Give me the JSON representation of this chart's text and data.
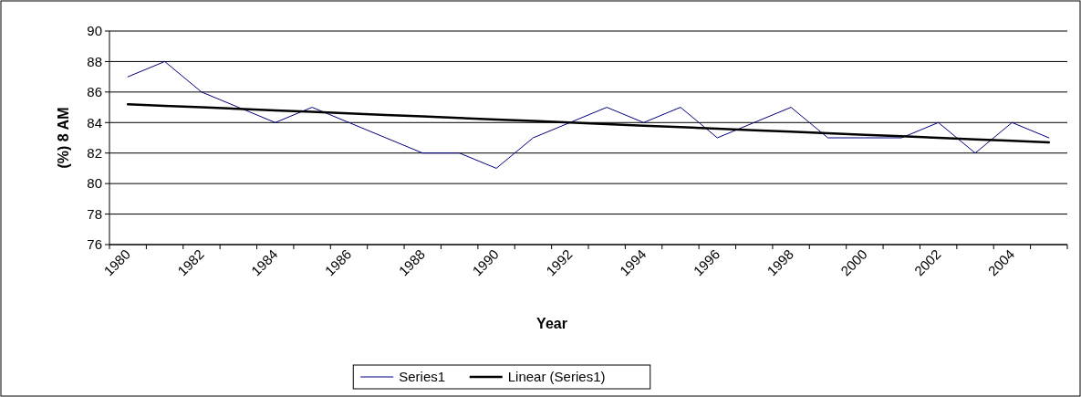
{
  "chart_data": {
    "type": "line",
    "xlabel": "Year",
    "ylabel": "(%) 8 AM",
    "categories": [
      "1980",
      null,
      "1982",
      null,
      "1984",
      null,
      "1986",
      null,
      "1988",
      null,
      "1990",
      null,
      "1992",
      null,
      "1994",
      null,
      "1996",
      null,
      "1998",
      null,
      "2000",
      null,
      "2002",
      null,
      "2004",
      null
    ],
    "series": [
      {
        "name": "Series1",
        "color": "#000080",
        "values": [
          87,
          88,
          86,
          85,
          84,
          85,
          84,
          83,
          82,
          82,
          81,
          83,
          84,
          85,
          84,
          85,
          83,
          84,
          85,
          83,
          83,
          83,
          84,
          82,
          84,
          83
        ]
      },
      {
        "name": "Linear (Series1)",
        "color": "#000000",
        "type": "line",
        "values": [
          85.2,
          85.1,
          85.0,
          84.9,
          84.8,
          84.7,
          84.6,
          84.5,
          84.4,
          84.3,
          84.2,
          84.1,
          84.0,
          83.9,
          83.8,
          83.7,
          83.6,
          83.5,
          83.4,
          83.3,
          83.2,
          83.1,
          83.0,
          82.9,
          82.8,
          82.7
        ]
      }
    ],
    "ylim": [
      76,
      90
    ],
    "yticks": [
      76,
      78,
      80,
      82,
      84,
      86,
      88,
      90
    ],
    "grid": "y",
    "legend": "bottom",
    "line_style": "solid"
  }
}
